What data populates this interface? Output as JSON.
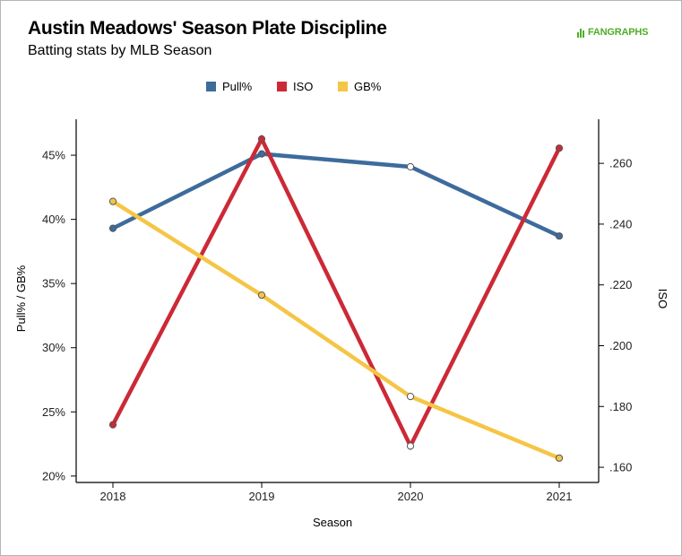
{
  "header": {
    "title": "Austin Meadows' Season Plate Discipline",
    "subtitle": "Batting stats by MLB Season",
    "logo_text": "FANGRAPHS"
  },
  "colors": {
    "pull": "#3d6b9c",
    "iso": "#cc2936",
    "gb": "#f5c546",
    "logo": "#50ae26"
  },
  "chart_data": {
    "type": "line",
    "title": "Austin Meadows' Season Plate Discipline",
    "subtitle": "Batting stats by MLB Season",
    "xlabel": "Season",
    "ylabel_left": "Pull% / GB%",
    "ylabel_right": "ISO",
    "categories": [
      "2018",
      "2019",
      "2020",
      "2021"
    ],
    "legend_position": "top-center",
    "grid": false,
    "y_left": {
      "min": 19.5,
      "max": 47.8,
      "ticks": [
        20,
        25,
        30,
        35,
        40,
        45
      ],
      "tick_labels": [
        "20%",
        "25%",
        "30%",
        "35%",
        "40%",
        "45%"
      ]
    },
    "y_right": {
      "min": 0.155,
      "max": 0.2745,
      "ticks": [
        0.16,
        0.18,
        0.2,
        0.22,
        0.24,
        0.26
      ],
      "tick_labels": [
        ".160",
        ".180",
        ".200",
        ".220",
        ".240",
        ".260"
      ]
    },
    "series": [
      {
        "name": "Pull%",
        "axis": "left",
        "color": "#3d6b9c",
        "values": [
          39.3,
          45.1,
          44.1,
          38.7
        ],
        "hollow": [
          false,
          false,
          true,
          false
        ]
      },
      {
        "name": "ISO",
        "axis": "right",
        "color": "#cc2936",
        "values": [
          0.174,
          0.268,
          0.167,
          0.265
        ],
        "hollow": [
          false,
          false,
          true,
          false
        ]
      },
      {
        "name": "GB%",
        "axis": "left",
        "color": "#f5c546",
        "values": [
          41.4,
          34.1,
          26.2,
          21.4
        ],
        "hollow": [
          false,
          false,
          true,
          false
        ]
      }
    ]
  }
}
